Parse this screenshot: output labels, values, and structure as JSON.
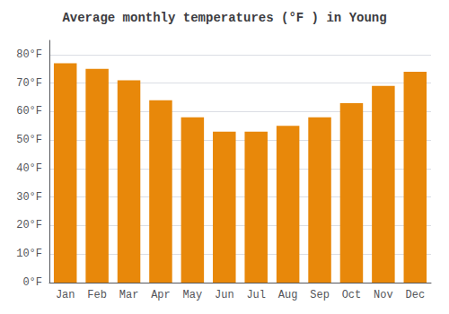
{
  "chart_data": {
    "type": "bar",
    "title": "Average monthly temperatures (°F ) in Young",
    "categories": [
      "Jan",
      "Feb",
      "Mar",
      "Apr",
      "May",
      "Jun",
      "Jul",
      "Aug",
      "Sep",
      "Oct",
      "Nov",
      "Dec"
    ],
    "values": [
      77,
      75,
      71,
      64,
      58,
      53,
      53,
      55,
      58,
      63,
      69,
      74
    ],
    "color": "#E8880A",
    "ylim": [
      0,
      85
    ],
    "yticks": [
      {
        "value": 0,
        "label": "0°F"
      },
      {
        "value": 10,
        "label": "10°F"
      },
      {
        "value": 20,
        "label": "20°F"
      },
      {
        "value": 30,
        "label": "30°F"
      },
      {
        "value": 40,
        "label": "40°F"
      },
      {
        "value": 50,
        "label": "50°F"
      },
      {
        "value": 60,
        "label": "60°F"
      },
      {
        "value": 70,
        "label": "70°F"
      },
      {
        "value": 80,
        "label": "80°F"
      }
    ],
    "grid": true
  }
}
